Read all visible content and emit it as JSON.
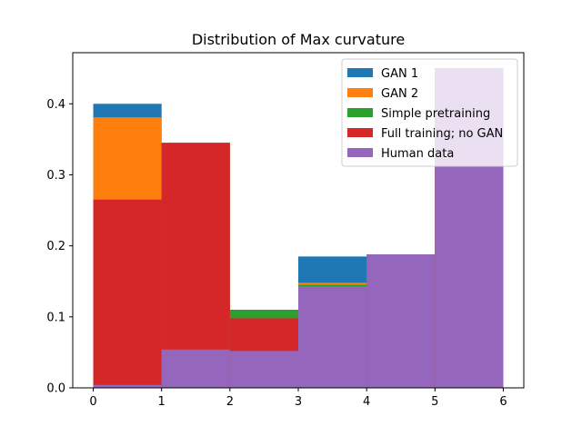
{
  "chart_data": {
    "type": "bar",
    "title": "Distribution of Max curvature",
    "xlabel": "",
    "ylabel": "",
    "xlim": [
      -0.3,
      6.3
    ],
    "ylim": [
      0,
      0.472
    ],
    "x_ticks": [
      0,
      1,
      2,
      3,
      4,
      5,
      6
    ],
    "y_ticks": [
      0.0,
      0.1,
      0.2,
      0.3,
      0.4
    ],
    "bin_edges": [
      0,
      1,
      2,
      3,
      4,
      5,
      6
    ],
    "legend_position": "top-right",
    "grid": false,
    "series": [
      {
        "name": "GAN 1",
        "color": "#1f77b4",
        "values": [
          0.4,
          0.345,
          0.105,
          0.185,
          0.188,
          0.45
        ]
      },
      {
        "name": "GAN 2",
        "color": "#ff7f0e",
        "values": [
          0.381,
          0.345,
          0.1,
          0.148,
          0.188,
          0.45
        ]
      },
      {
        "name": "Simple pretraining",
        "color": "#2ca02c",
        "values": [
          0.265,
          0.345,
          0.11,
          0.145,
          0.188,
          0.45
        ]
      },
      {
        "name": "Full training; no GAN",
        "color": "#d62728",
        "values": [
          0.265,
          0.345,
          0.098,
          0.052,
          0.188,
          0.45
        ]
      },
      {
        "name": "Human data",
        "color": "#9467bd",
        "values": [
          0.004,
          0.054,
          0.052,
          0.143,
          0.188,
          0.45
        ]
      }
    ]
  }
}
